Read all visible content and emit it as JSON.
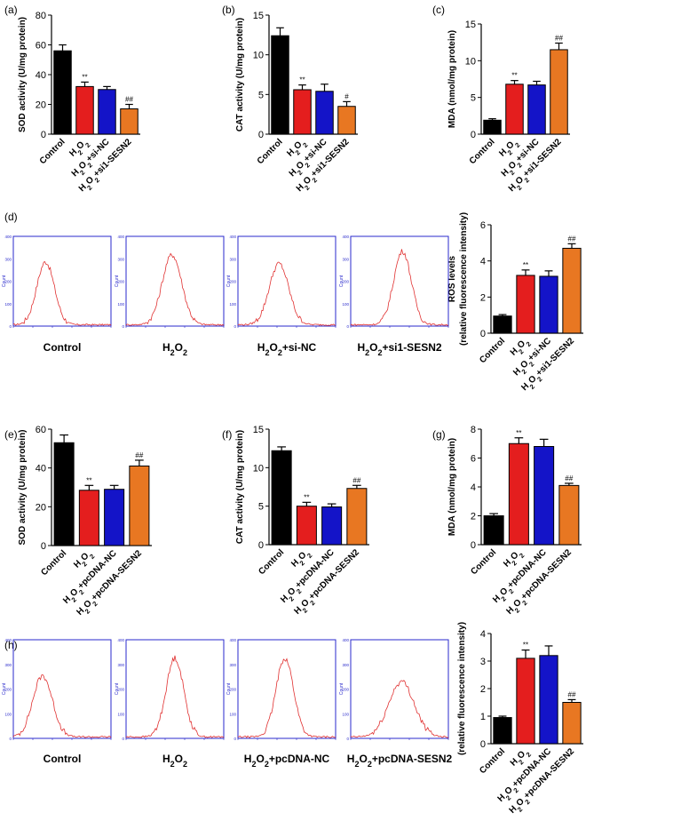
{
  "colors": {
    "black": "#000000",
    "red": "#e41e1e",
    "blue": "#1414c8",
    "orange": "#e87722",
    "flow_frame": "#2a2acc",
    "flow_line": "#e03030"
  },
  "chart_data": [
    {
      "panel": "(a)",
      "type": "bar",
      "ylabel": "SOD activity (U/mg protein)",
      "ylim": [
        0,
        80
      ],
      "yticks": [
        0,
        20,
        40,
        60,
        80
      ],
      "categories": [
        "Control",
        "H2O2",
        "H2O2+si-NC",
        "H2O2+si1-SESN2"
      ],
      "values": [
        56,
        32,
        30,
        17
      ],
      "errors": [
        4,
        3,
        2,
        3
      ],
      "annotations": [
        "",
        "**",
        "",
        "##"
      ],
      "colors": [
        "black",
        "red",
        "blue",
        "orange"
      ]
    },
    {
      "panel": "(b)",
      "type": "bar",
      "ylabel": "CAT activity (U/mg protein)",
      "ylim": [
        0,
        15
      ],
      "yticks": [
        0,
        5,
        10,
        15
      ],
      "categories": [
        "Control",
        "H2O2",
        "H2O2+si-NC",
        "H2O2+si1-SESN2"
      ],
      "values": [
        12.4,
        5.6,
        5.4,
        3.5
      ],
      "errors": [
        1.0,
        0.6,
        0.9,
        0.6
      ],
      "annotations": [
        "",
        "**",
        "",
        "#"
      ],
      "colors": [
        "black",
        "red",
        "blue",
        "orange"
      ]
    },
    {
      "panel": "(c)",
      "type": "bar",
      "ylabel": "MDA (nmol/mg protein)",
      "ylim": [
        0,
        15
      ],
      "yticks": [
        0,
        5,
        10,
        15
      ],
      "categories": [
        "Control",
        "H2O2",
        "H2O2+si-NC",
        "H2O2+si1-SESN2"
      ],
      "values": [
        1.9,
        6.8,
        6.7,
        11.5
      ],
      "errors": [
        0.2,
        0.5,
        0.5,
        0.9
      ],
      "annotations": [
        "",
        "**",
        "",
        "##"
      ],
      "colors": [
        "black",
        "red",
        "blue",
        "orange"
      ]
    },
    {
      "panel": "(d)",
      "type": "bar",
      "ylabel": "ROS levels",
      "ylabel2": "(relative fluorescence intensity)",
      "ylim": [
        0,
        6
      ],
      "yticks": [
        0,
        2,
        4,
        6
      ],
      "categories": [
        "Control",
        "H2O2",
        "H2O2+si-NC",
        "H2O2+si1-SESN2"
      ],
      "values": [
        0.95,
        3.2,
        3.15,
        4.7
      ],
      "errors": [
        0.08,
        0.3,
        0.3,
        0.25
      ],
      "annotations": [
        "",
        "**",
        "",
        "##"
      ],
      "colors": [
        "black",
        "red",
        "blue",
        "orange"
      ]
    },
    {
      "panel": "(e)",
      "type": "bar",
      "ylabel": "SOD activity (U/mg protein)",
      "ylim": [
        0,
        60
      ],
      "yticks": [
        0,
        20,
        40,
        60
      ],
      "categories": [
        "Control",
        "H2O2",
        "H2O2+pcDNA-NC",
        "H2O2+pcDNA-SESN2"
      ],
      "values": [
        53,
        28.5,
        29,
        41
      ],
      "errors": [
        4,
        2.5,
        2,
        3
      ],
      "annotations": [
        "",
        "**",
        "",
        "##"
      ],
      "colors": [
        "black",
        "red",
        "blue",
        "orange"
      ]
    },
    {
      "panel": "(f)",
      "type": "bar",
      "ylabel": "CAT activity (U/mg protein)",
      "ylim": [
        0,
        15
      ],
      "yticks": [
        0,
        5,
        10,
        15
      ],
      "categories": [
        "Control",
        "H2O2",
        "H2O2+pcDNA-NC",
        "H2O2+pcDNA-SESN2"
      ],
      "values": [
        12.2,
        5.0,
        4.9,
        7.3
      ],
      "errors": [
        0.5,
        0.5,
        0.4,
        0.4
      ],
      "annotations": [
        "",
        "**",
        "",
        "##"
      ],
      "colors": [
        "black",
        "red",
        "blue",
        "orange"
      ]
    },
    {
      "panel": "(g)",
      "type": "bar",
      "ylabel": "MDA (nmol/mg protein)",
      "ylim": [
        0,
        8
      ],
      "yticks": [
        0,
        2,
        4,
        6,
        8
      ],
      "categories": [
        "Control",
        "H2O2",
        "H2O2+pcDNA-NC",
        "H2O2+pcDNA-SESN2"
      ],
      "values": [
        2.0,
        7.0,
        6.8,
        4.1
      ],
      "errors": [
        0.15,
        0.4,
        0.5,
        0.15
      ],
      "annotations": [
        "",
        "**",
        "",
        "##"
      ],
      "colors": [
        "black",
        "red",
        "blue",
        "orange"
      ]
    },
    {
      "panel": "(h)",
      "type": "bar",
      "ylabel": "(relative fluorescence intensity)",
      "ylim": [
        0,
        4
      ],
      "yticks": [
        0,
        1,
        2,
        3,
        4
      ],
      "categories": [
        "Control",
        "H2O2",
        "H2O2+pcDNA-NC",
        "H2O2+pcDNA-SESN2"
      ],
      "values": [
        0.95,
        3.1,
        3.2,
        1.5
      ],
      "errors": [
        0.05,
        0.3,
        0.35,
        0.1
      ],
      "annotations": [
        "",
        "**",
        "",
        "##"
      ],
      "colors": [
        "black",
        "red",
        "blue",
        "orange"
      ]
    }
  ],
  "flow_panels": [
    {
      "panel": "(d)",
      "labels": [
        "Control",
        "H2O2",
        "H2O2+si-NC",
        "H2O2+si1-SESN2"
      ],
      "yticks": [
        "400",
        "300",
        "200",
        "100",
        "0"
      ],
      "ylabel": "Count",
      "peaks": [
        {
          "center": 0.33,
          "height": 0.7,
          "width": 0.09
        },
        {
          "center": 0.47,
          "height": 0.78,
          "width": 0.1
        },
        {
          "center": 0.42,
          "height": 0.68,
          "width": 0.1
        },
        {
          "center": 0.53,
          "height": 0.82,
          "width": 0.09
        }
      ]
    },
    {
      "panel": "(h)",
      "labels": [
        "Control",
        "H2O2",
        "H2O2+pcDNA-NC",
        "H2O2+pcDNA-SESN2"
      ],
      "yticks": [
        "400",
        "300",
        "200",
        "100",
        "0"
      ],
      "ylabel": "Count",
      "peaks": [
        {
          "center": 0.3,
          "height": 0.62,
          "width": 0.1
        },
        {
          "center": 0.5,
          "height": 0.8,
          "width": 0.09
        },
        {
          "center": 0.48,
          "height": 0.8,
          "width": 0.09
        },
        {
          "center": 0.52,
          "height": 0.56,
          "width": 0.13
        }
      ]
    }
  ]
}
